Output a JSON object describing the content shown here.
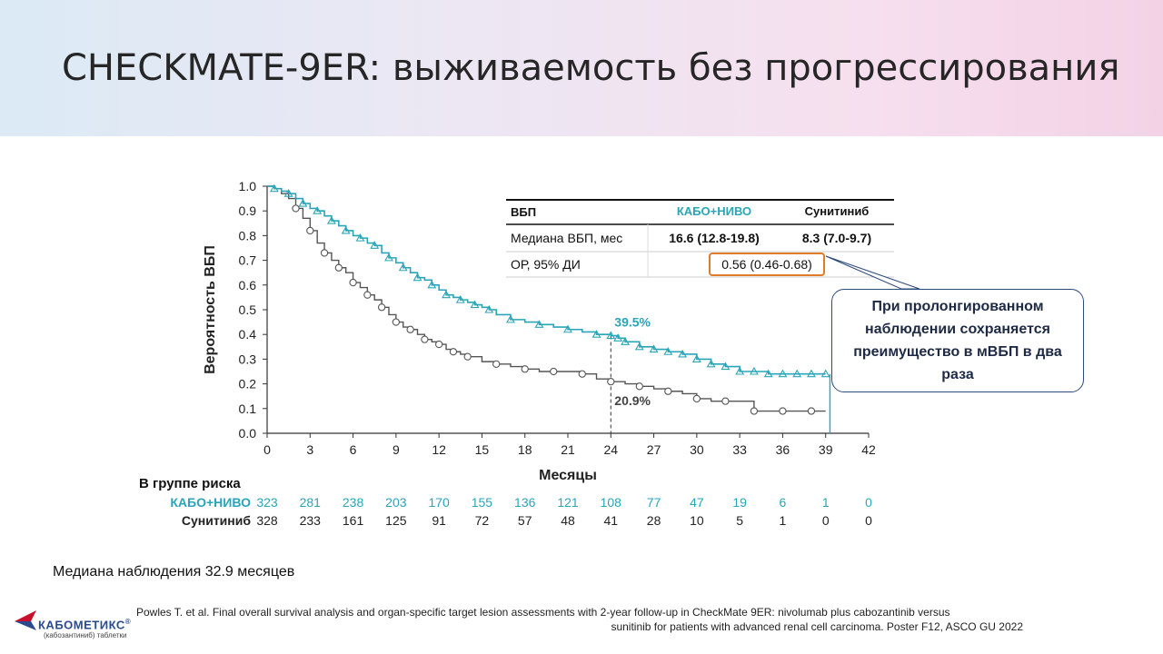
{
  "title": "CHECKMATE-9ER: выживаемость без прогрессирования",
  "note": "Медиана наблюдения 32.9 месяцев",
  "reference_line1": "Powles T. et al. Final overall  survival  analysis and organ-specific  target lesion assessments with 2-year follow-up  in CheckMate 9ER:  nivolumab  plus cabozantinib versus",
  "reference_line2": "sunitinib for patients with advanced  renal cell carcinoma. Poster F12, ASCO GU 2022",
  "callout": "При пролонгированном наблюдении сохраняется преимущество в мВБП в два раза",
  "logo": {
    "name": "КАБОМЕТИКС",
    "mark": "®",
    "sub": "(кабозантиниб) таблетки"
  },
  "colors": {
    "kabo": "#2aa5b8",
    "sunitinib": "#555555",
    "highlight": "#e07b2a"
  },
  "table": {
    "headers": [
      "ВБП",
      "КАБО+НИВО",
      "Сунитиниб"
    ],
    "rows": [
      [
        "Медиана ВБП, мес",
        "16.6 (12.8-19.8)",
        "8.3 (7.0-9.7)"
      ],
      [
        "ОР, 95% ДИ",
        "0.56 (0.46-0.68)",
        ""
      ]
    ]
  },
  "risk_table": {
    "title": "В группе риска",
    "rows": [
      {
        "label": "КАБО+НИВО",
        "values": [
          "323",
          "281",
          "238",
          "203",
          "170",
          "155",
          "136",
          "121",
          "108",
          "77",
          "47",
          "19",
          "6",
          "1",
          "0"
        ]
      },
      {
        "label": "Сунитиниб",
        "values": [
          "328",
          "233",
          "161",
          "125",
          "91",
          "72",
          "57",
          "48",
          "41",
          "28",
          "10",
          "5",
          "1",
          "0",
          "0"
        ]
      }
    ]
  },
  "chart_data": {
    "type": "line",
    "xlabel": "Месяцы",
    "ylabel": "Вероятность ВБП",
    "xlim": [
      0,
      42
    ],
    "ylim": [
      0,
      1.0
    ],
    "xticks": [
      "0",
      "3",
      "6",
      "9",
      "12",
      "15",
      "18",
      "21",
      "24",
      "27",
      "30",
      "33",
      "36",
      "39",
      "42"
    ],
    "yticks": [
      "0.0",
      "0.1",
      "0.2",
      "0.3",
      "0.4",
      "0.5",
      "0.6",
      "0.7",
      "0.8",
      "0.9",
      "1.0"
    ],
    "annotations": [
      {
        "x": 24,
        "y": 0.395,
        "text": "39.5%",
        "series": "КАБО+НИВО"
      },
      {
        "x": 24,
        "y": 0.209,
        "text": "20.9%",
        "series": "Сунитиниб"
      }
    ],
    "series": [
      {
        "name": "КАБО+НИВО",
        "x": [
          0,
          0.5,
          1,
          1.5,
          2,
          2.5,
          3,
          3.5,
          4,
          4.5,
          5,
          5.5,
          6,
          6.5,
          7,
          7.5,
          8,
          8.5,
          9,
          9.5,
          10,
          10.5,
          11,
          11.5,
          12,
          12.5,
          13,
          13.5,
          14,
          14.5,
          15,
          15.5,
          16,
          17,
          18,
          19,
          20,
          21,
          22,
          23,
          24,
          24.5,
          25,
          26,
          27,
          28,
          29,
          30,
          31,
          32,
          33,
          34,
          35,
          36,
          37,
          38,
          39
        ],
        "y": [
          1.0,
          0.99,
          0.98,
          0.97,
          0.95,
          0.93,
          0.91,
          0.9,
          0.88,
          0.86,
          0.84,
          0.82,
          0.8,
          0.79,
          0.77,
          0.76,
          0.73,
          0.71,
          0.69,
          0.67,
          0.65,
          0.63,
          0.62,
          0.6,
          0.58,
          0.56,
          0.55,
          0.54,
          0.53,
          0.52,
          0.51,
          0.5,
          0.48,
          0.46,
          0.45,
          0.44,
          0.43,
          0.42,
          0.41,
          0.4,
          0.395,
          0.385,
          0.37,
          0.35,
          0.34,
          0.33,
          0.32,
          0.3,
          0.28,
          0.27,
          0.25,
          0.25,
          0.24,
          0.24,
          0.24,
          0.24,
          0.24
        ]
      },
      {
        "name": "Сунитиниб",
        "x": [
          0,
          0.5,
          1,
          1.5,
          2,
          2.5,
          3,
          3.5,
          4,
          4.5,
          5,
          5.5,
          6,
          6.5,
          7,
          7.5,
          8,
          8.5,
          9,
          9.5,
          10,
          10.5,
          11,
          11.5,
          12,
          12.5,
          13,
          13.5,
          14,
          15,
          16,
          17,
          18,
          19,
          20,
          21,
          22,
          23,
          24,
          25,
          26,
          27,
          28,
          29,
          30,
          31,
          32,
          33,
          34,
          35,
          36,
          37,
          38,
          39
        ],
        "y": [
          1.0,
          0.99,
          0.97,
          0.95,
          0.91,
          0.87,
          0.82,
          0.77,
          0.73,
          0.7,
          0.67,
          0.65,
          0.61,
          0.59,
          0.56,
          0.54,
          0.51,
          0.48,
          0.45,
          0.43,
          0.42,
          0.4,
          0.38,
          0.37,
          0.36,
          0.34,
          0.33,
          0.32,
          0.31,
          0.29,
          0.28,
          0.27,
          0.26,
          0.25,
          0.25,
          0.25,
          0.24,
          0.22,
          0.209,
          0.2,
          0.19,
          0.18,
          0.17,
          0.16,
          0.14,
          0.13,
          0.13,
          0.13,
          0.09,
          0.09,
          0.09,
          0.09,
          0.09,
          0.09
        ]
      }
    ]
  }
}
